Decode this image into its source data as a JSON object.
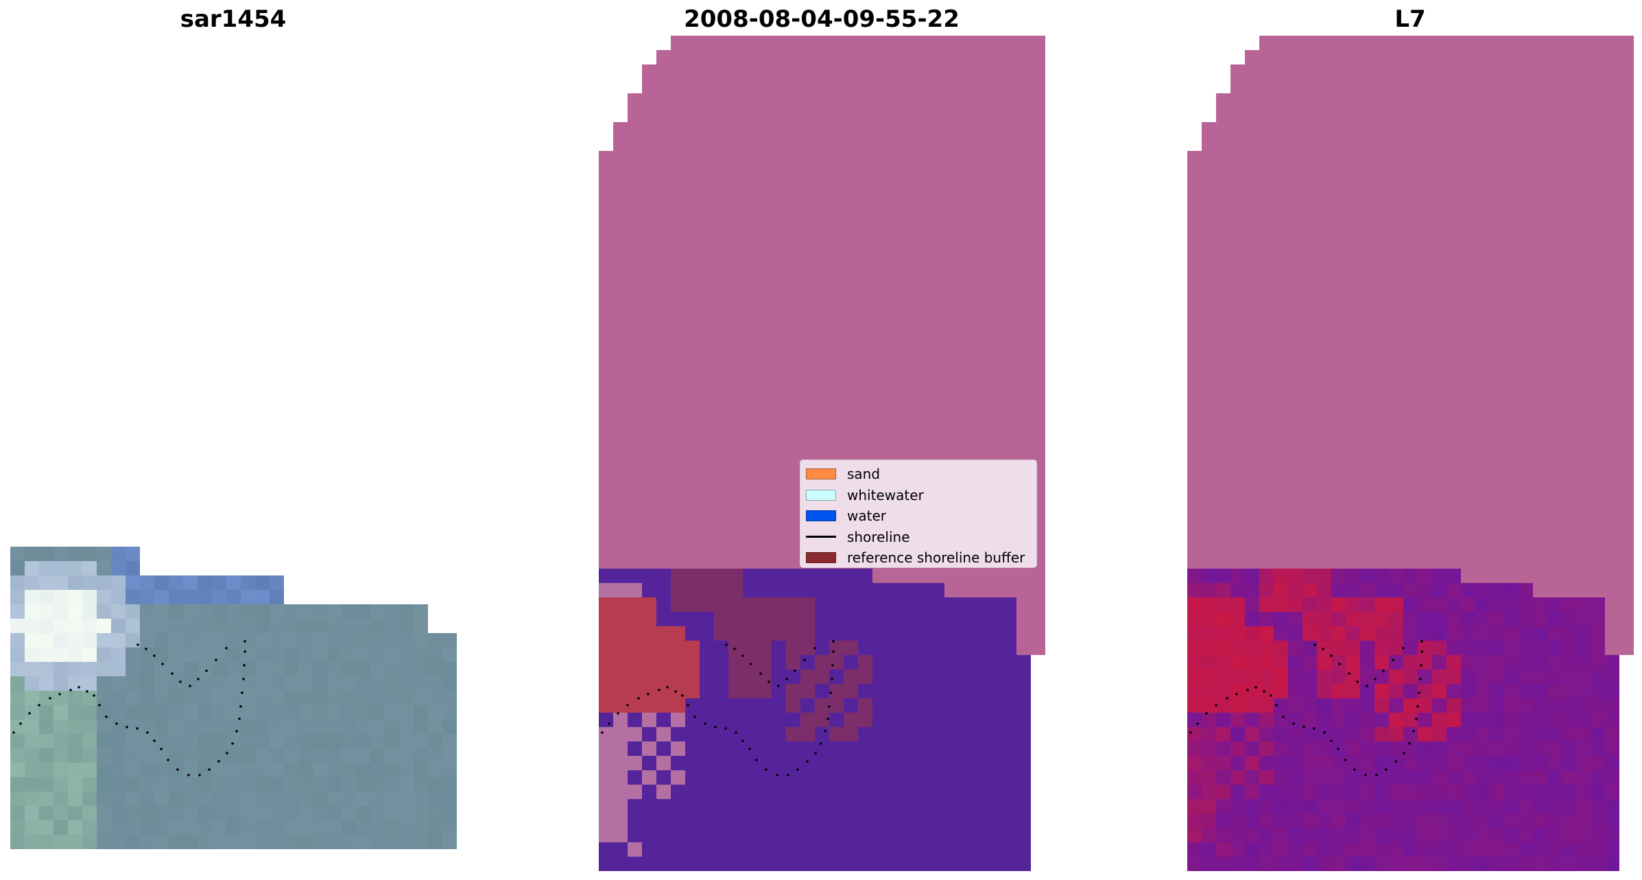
{
  "panels": {
    "left": {
      "title": "sar1454"
    },
    "middle": {
      "title": "2008-08-04-09-55-22"
    },
    "right": {
      "title": "L7"
    }
  },
  "legend": {
    "items": [
      {
        "label": "sand",
        "color": "#ff8c42",
        "kind": "patch"
      },
      {
        "label": "whitewater",
        "color": "#ccffff",
        "kind": "patch"
      },
      {
        "label": "water",
        "color": "#0055ee",
        "kind": "patch"
      },
      {
        "label": "shoreline",
        "color": "#000000",
        "kind": "line"
      },
      {
        "label": "reference shoreline buffer",
        "color": "#8b2a2f",
        "kind": "patch"
      }
    ]
  },
  "colors": {
    "background_mask": "#b96496",
    "water_class": "#56249a",
    "sand_class": "#b73c50",
    "whitewater_class": "#b46fa3",
    "buffer_overlay": "#7c2e6a",
    "imagery_water": "#6c8c98",
    "imagery_bright": "#f6fbf2",
    "index_low": "#6e179e",
    "index_high": "#c81846",
    "shoreline": "#000000"
  }
}
